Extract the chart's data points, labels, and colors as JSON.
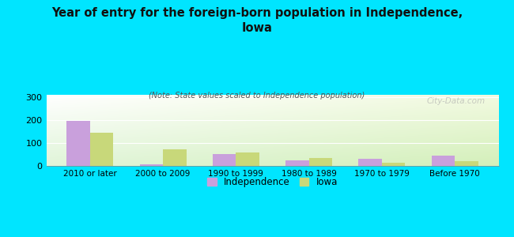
{
  "title": "Year of entry for the foreign-born population in Independence,\nIowa",
  "subtitle": "(Note: State values scaled to Independence population)",
  "categories": [
    "2010 or later",
    "2000 to 2009",
    "1990 to 1999",
    "1980 to 1989",
    "1970 to 1979",
    "Before 1970"
  ],
  "independence_values": [
    198,
    8,
    50,
    25,
    30,
    44
  ],
  "iowa_values": [
    145,
    72,
    57,
    35,
    13,
    19
  ],
  "independence_color": "#c9a0dc",
  "iowa_color": "#c8d87a",
  "background_outer": "#00e5ff",
  "ylim": [
    0,
    310
  ],
  "yticks": [
    0,
    100,
    200,
    300
  ],
  "legend_labels": [
    "Independence",
    "Iowa"
  ],
  "watermark": "City-Data.com"
}
